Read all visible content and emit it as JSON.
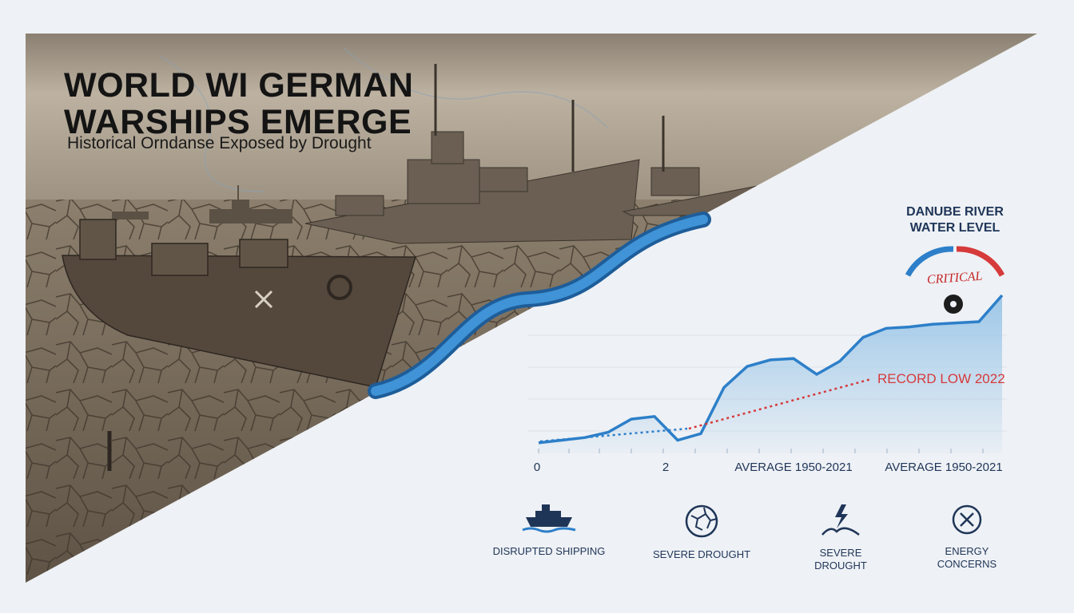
{
  "header": {
    "title_line1": "WORLD WI GERMAN",
    "title_line2": "WARSHIPS EMERGE",
    "subtitle": "Historical Orndanse Exposed by Drought"
  },
  "panel": {
    "title_line1": "DANUBE RIVER",
    "title_line2": "WATER LEVEL"
  },
  "gauge": {
    "label": "CRITICAL",
    "colors": {
      "low": "#2d7fc9",
      "high": "#d63a3a"
    }
  },
  "chart_data": {
    "type": "area",
    "x_tick_labels": [
      "0",
      "2",
      "AVERAGE 1950-2021",
      "AVERAGE 1950-2021"
    ],
    "series": [
      {
        "values": [
          0.08,
          0.1,
          0.12,
          0.16,
          0.26,
          0.28,
          0.1,
          0.15,
          0.5,
          0.66,
          0.71,
          0.72,
          0.6,
          0.7,
          0.88,
          0.95,
          0.96,
          0.98,
          0.99,
          1.0,
          1.2
        ]
      }
    ],
    "annotation": {
      "label": "RECORD LOW 2022",
      "color": "#d63a3a"
    },
    "colors": {
      "line": "#2d7fc9",
      "area": "#8fc0e6",
      "trend_low": "#2d7fc9",
      "trend_high": "#d63a3a"
    }
  },
  "icons": [
    {
      "name": "ship-icon",
      "label_lines": [
        "DISRUPTED SHIPPING"
      ]
    },
    {
      "name": "cracked-earth-icon",
      "label_lines": [
        "SEVERE DROUGHT"
      ]
    },
    {
      "name": "lightning-icon",
      "label_lines": [
        "SEVERE",
        "DROUGHT"
      ]
    },
    {
      "name": "cross-circle-icon",
      "label_lines": [
        "ENERGY",
        "CONCERNS"
      ]
    }
  ]
}
